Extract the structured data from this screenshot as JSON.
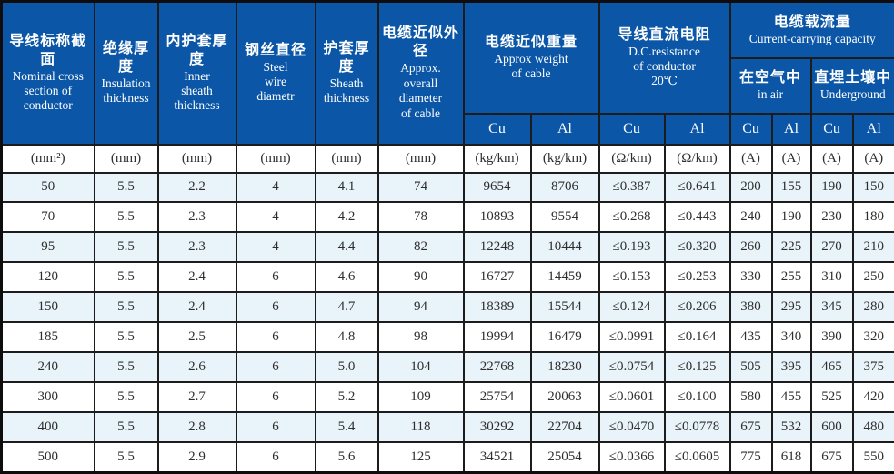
{
  "header": {
    "col1": {
      "zh": "导线标称截面",
      "en": "Nominal  cross\nsection of\nconductor"
    },
    "col2": {
      "zh": "绝缘厚度",
      "en": "Insulation\nthickness"
    },
    "col3": {
      "zh": "内护套厚度",
      "en": "Inner\nsheath\nthickness"
    },
    "col4": {
      "zh": "钢丝直径",
      "en": "Steel\nwire\ndiametr"
    },
    "col5": {
      "zh": "护套厚度",
      "en": "Sheath\nthickness"
    },
    "col6": {
      "zh": "电缆近似外径",
      "en": "Approx.\noverall\ndiameter\nof cable"
    },
    "weight": {
      "zh": "电缆近似重量",
      "en": "Approx weight\nof cable"
    },
    "resistance": {
      "zh": "导线直流电阻",
      "en": "D.C.resistance\nof conductor\n20℃"
    },
    "capacity": {
      "zh": "电缆载流量",
      "en": "Current-carrying capacity"
    },
    "in_air": {
      "zh": "在空气中",
      "en": "in air"
    },
    "underground": {
      "zh": "直埋土壤中",
      "en": "Underground"
    },
    "material_cu": "Cu",
    "material_al": "Al"
  },
  "units": [
    "(mm²)",
    "(mm)",
    "(mm)",
    "(mm)",
    "(mm)",
    "(mm)",
    "(kg/km)",
    "(kg/km)",
    "(Ω/km)",
    "(Ω/km)",
    "(A)",
    "(A)",
    "(A)",
    "(A)"
  ],
  "rows": [
    [
      "50",
      "5.5",
      "2.2",
      "4",
      "4.1",
      "74",
      "9654",
      "8706",
      "≤0.387",
      "≤0.641",
      "200",
      "155",
      "190",
      "150"
    ],
    [
      "70",
      "5.5",
      "2.3",
      "4",
      "4.2",
      "78",
      "10893",
      "9554",
      "≤0.268",
      "≤0.443",
      "240",
      "190",
      "230",
      "180"
    ],
    [
      "95",
      "5.5",
      "2.3",
      "4",
      "4.4",
      "82",
      "12248",
      "10444",
      "≤0.193",
      "≤0.320",
      "260",
      "225",
      "270",
      "210"
    ],
    [
      "120",
      "5.5",
      "2.4",
      "6",
      "4.6",
      "90",
      "16727",
      "14459",
      "≤0.153",
      "≤0.253",
      "330",
      "255",
      "310",
      "250"
    ],
    [
      "150",
      "5.5",
      "2.4",
      "6",
      "4.7",
      "94",
      "18389",
      "15544",
      "≤0.124",
      "≤0.206",
      "380",
      "295",
      "345",
      "280"
    ],
    [
      "185",
      "5.5",
      "2.5",
      "6",
      "4.8",
      "98",
      "19994",
      "16479",
      "≤0.0991",
      "≤0.164",
      "435",
      "340",
      "390",
      "320"
    ],
    [
      "240",
      "5.5",
      "2.6",
      "6",
      "5.0",
      "104",
      "22768",
      "18230",
      "≤0.0754",
      "≤0.125",
      "505",
      "395",
      "465",
      "375"
    ],
    [
      "300",
      "5.5",
      "2.7",
      "6",
      "5.2",
      "109",
      "25754",
      "20063",
      "≤0.0601",
      "≤0.100",
      "580",
      "455",
      "525",
      "420"
    ],
    [
      "400",
      "5.5",
      "2.8",
      "6",
      "5.4",
      "118",
      "30292",
      "22704",
      "≤0.0470",
      "≤0.0778",
      "675",
      "532",
      "600",
      "480"
    ],
    [
      "500",
      "5.5",
      "2.9",
      "6",
      "5.6",
      "125",
      "34521",
      "25054",
      "≤0.0366",
      "≤0.0605",
      "775",
      "618",
      "675",
      "550"
    ]
  ]
}
